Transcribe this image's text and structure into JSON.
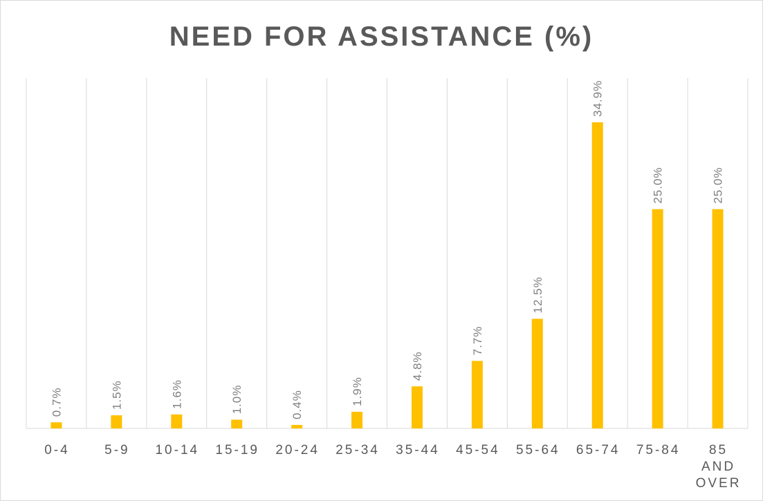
{
  "chart_data": {
    "type": "bar",
    "title": "NEED FOR ASSISTANCE (%)",
    "categories": [
      "0-4",
      "5-9",
      "10-14",
      "15-19",
      "20-24",
      "25-34",
      "35-44",
      "45-54",
      "55-64",
      "65-74",
      "75-84",
      "85 AND OVER"
    ],
    "values": [
      0.7,
      1.5,
      1.6,
      1.0,
      0.4,
      1.9,
      4.8,
      7.7,
      12.5,
      34.9,
      25.0,
      25.0
    ],
    "data_labels": [
      "0.7%",
      "1.5%",
      "1.6%",
      "1.0%",
      "0.4%",
      "1.9%",
      "4.8%",
      "7.7%",
      "12.5%",
      "34.9%",
      "25.0%",
      "25.0%"
    ],
    "ylim": [
      0,
      35
    ],
    "xlabel": "",
    "ylabel": "",
    "grid": "vertical category separators",
    "legend": "none",
    "colors": {
      "bar": "#FFC000",
      "grid": "#d9d9d9",
      "text": "#595959",
      "label": "#7f7f7f"
    }
  }
}
